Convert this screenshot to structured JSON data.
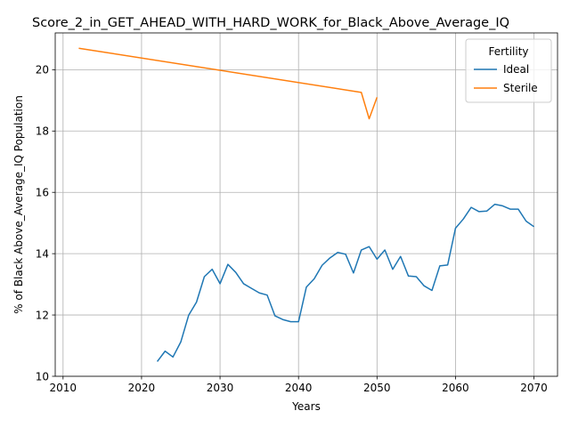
{
  "chart_data": {
    "type": "line",
    "title": "Score_2_in_GET_AHEAD_WITH_HARD_WORK_for_Black_Above_Average_IQ",
    "xlabel": "Years",
    "ylabel": "% of Black Above_Average_IQ Population",
    "xlim": [
      2009,
      2073
    ],
    "ylim": [
      10,
      21.2
    ],
    "xticks": [
      2010,
      2020,
      2030,
      2040,
      2050,
      2060,
      2070
    ],
    "yticks": [
      10,
      12,
      14,
      16,
      18,
      20
    ],
    "grid": true,
    "legend": {
      "title": "Fertility",
      "placement": "top-right"
    },
    "series": [
      {
        "name": "Ideal",
        "color": "#1f77b4",
        "x": [
          2022,
          2023,
          2024,
          2025,
          2026,
          2027,
          2028,
          2029,
          2030,
          2031,
          2032,
          2033,
          2034,
          2035,
          2036,
          2037,
          2038,
          2039,
          2040,
          2041,
          2042,
          2043,
          2044,
          2045,
          2046,
          2047,
          2048,
          2049,
          2050,
          2051,
          2052,
          2053,
          2054,
          2055,
          2056,
          2057,
          2058,
          2059,
          2060,
          2061,
          2062,
          2063,
          2064,
          2065,
          2066,
          2067,
          2068,
          2069,
          2070
        ],
        "y": [
          10.48,
          10.82,
          10.63,
          11.12,
          11.99,
          12.42,
          13.25,
          13.49,
          13.02,
          13.65,
          13.39,
          13.02,
          12.87,
          12.72,
          12.65,
          11.97,
          11.85,
          11.78,
          11.78,
          12.91,
          13.18,
          13.62,
          13.86,
          14.04,
          13.98,
          13.37,
          14.12,
          14.23,
          13.82,
          14.12,
          13.49,
          13.91,
          13.27,
          13.25,
          12.95,
          12.8,
          13.6,
          13.63,
          14.83,
          15.13,
          15.51,
          15.37,
          15.39,
          15.61,
          15.56,
          15.45,
          15.45,
          15.06,
          14.88
        ]
      },
      {
        "name": "Sterile",
        "color": "#ff7f0e",
        "x": [
          2012,
          2048,
          2049,
          2050
        ],
        "y": [
          20.7,
          19.26,
          18.4,
          19.1
        ]
      }
    ]
  }
}
